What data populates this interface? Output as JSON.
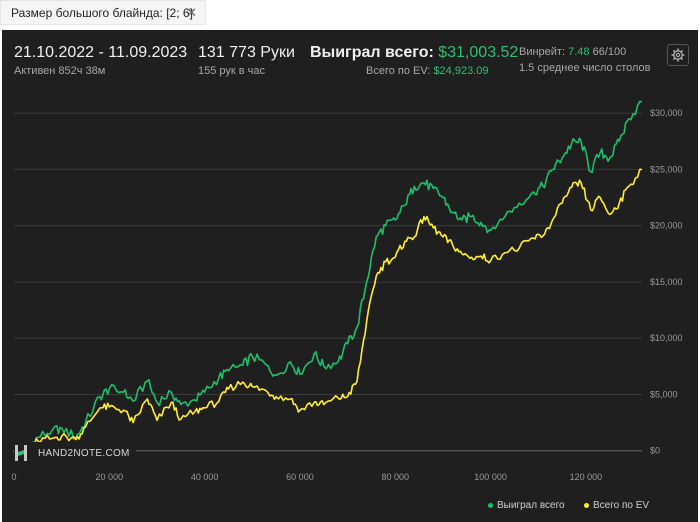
{
  "filter": {
    "label": "Размер большого блайнда: [2; 6]",
    "close": "✕"
  },
  "header": {
    "date_range": "21.10.2022 - 11.09.2023",
    "active": "Активен 852ч 38м",
    "hands": "131 773 Руки",
    "hands_per_hour": "155 рук в час",
    "won_label": "Выиграл всего:",
    "won_value": "$31,003.52",
    "ev_label": "Всего по EV:",
    "ev_value": "$24,923.09",
    "winrate_label": "Винрейт:",
    "winrate_value": "7.48",
    "winrate_hands": "66/100",
    "tables": "1.5 среднее число столов",
    "settings_icon": "gear-icon"
  },
  "watermark": {
    "text": "HAND2NOTE.COM",
    "icon": "h2n-logo-icon"
  },
  "legend": {
    "won": "Выиграл всего",
    "ev": "Всего по EV"
  },
  "colors": {
    "won": "#1fbf6a",
    "ev": "#ffee33",
    "background": "#1f1f1f",
    "grid": "#3a3a3a"
  },
  "chart_data": {
    "type": "line",
    "xlabel": "",
    "ylabel": "",
    "xlim": [
      0,
      131773
    ],
    "ylim": [
      -1000,
      32500
    ],
    "x_ticks": [
      0,
      20000,
      40000,
      60000,
      80000,
      100000,
      120000
    ],
    "x_tick_labels": [
      "0",
      "20 000",
      "40 000",
      "60 000",
      "80 000",
      "100 000",
      "120 000"
    ],
    "y_ticks": [
      0,
      5000,
      10000,
      15000,
      20000,
      25000,
      30000
    ],
    "y_tick_labels": [
      "$0",
      "$5,000",
      "$10,000",
      "$15,000",
      "$20,000",
      "$25,000",
      "$30,000"
    ],
    "grid": true,
    "legend_position": "bottom-right",
    "x": [
      0,
      3000,
      5000,
      8000,
      10000,
      13000,
      15000,
      18000,
      20000,
      23000,
      25000,
      28000,
      30000,
      33000,
      35000,
      38000,
      40000,
      43000,
      45000,
      48000,
      50000,
      53000,
      55000,
      58000,
      60000,
      63000,
      65000,
      68000,
      70000,
      72000,
      74000,
      76000,
      78000,
      80000,
      82000,
      84000,
      86000,
      88000,
      90000,
      92000,
      94000,
      96000,
      98000,
      100000,
      103000,
      106000,
      109000,
      111000,
      113000,
      115000,
      117000,
      119000,
      121000,
      123000,
      125000,
      127000,
      129000,
      131773
    ],
    "series": [
      {
        "name": "Выиграл всего",
        "values": [
          0,
          300,
          1200,
          1800,
          2000,
          1200,
          2500,
          4800,
          5500,
          5200,
          4400,
          6200,
          4300,
          5200,
          4100,
          4500,
          5200,
          6500,
          7100,
          7600,
          8400,
          7600,
          6700,
          7900,
          6800,
          8600,
          7500,
          7900,
          9500,
          11000,
          15000,
          19000,
          20000,
          20500,
          21800,
          23500,
          23800,
          23300,
          22500,
          21200,
          20500,
          20800,
          20300,
          19600,
          20800,
          22000,
          23000,
          23500,
          25000,
          26000,
          27300,
          27500,
          24800,
          26500,
          26000,
          27500,
          29500,
          31000
        ]
      },
      {
        "name": "Всего по EV",
        "values": [
          0,
          200,
          900,
          1100,
          1300,
          1000,
          2100,
          3800,
          3900,
          3600,
          2500,
          4600,
          2700,
          4300,
          2800,
          3500,
          3800,
          4400,
          5500,
          6100,
          5700,
          5300,
          4800,
          4600,
          3600,
          4300,
          4100,
          4700,
          4800,
          6200,
          11500,
          15500,
          16800,
          17200,
          18600,
          19000,
          20800,
          19800,
          19000,
          18300,
          17500,
          17200,
          17300,
          16900,
          17600,
          18000,
          18900,
          19100,
          20500,
          22000,
          23400,
          23800,
          21400,
          22500,
          21000,
          22000,
          23500,
          25000
        ]
      }
    ]
  }
}
